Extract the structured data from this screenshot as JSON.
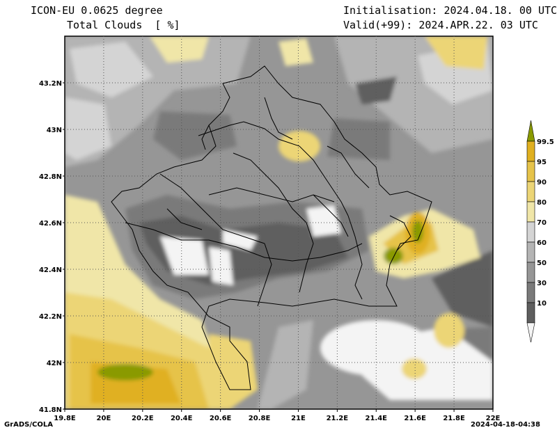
{
  "header": {
    "model": "ICON-EU 0.0625 degree",
    "field": "Total Clouds  [ %]",
    "init": "Initialisation: 2024.04.18. 00 UTC",
    "valid": "Valid(+99): 2024.APR.22. 03 UTC"
  },
  "map": {
    "lat_labels": [
      "43.2N",
      "43N",
      "42.8N",
      "42.6N",
      "42.4N",
      "42.2N",
      "42N",
      "41.8N"
    ],
    "lat_values": [
      43.2,
      43.0,
      42.8,
      42.6,
      42.4,
      42.2,
      42.0,
      41.8
    ],
    "lon_labels": [
      "19.8E",
      "20E",
      "20.2E",
      "20.4E",
      "20.6E",
      "20.8E",
      "21E",
      "21.2E",
      "21.4E",
      "21.6E",
      "21.8E",
      "22E"
    ],
    "lon_values": [
      19.8,
      20.0,
      20.2,
      20.4,
      20.6,
      20.8,
      21.0,
      21.2,
      21.4,
      21.6,
      21.8,
      22.0
    ],
    "lon_range": [
      19.8,
      22.0
    ],
    "lat_range": [
      41.8,
      43.4
    ],
    "grid": true
  },
  "colorbar": {
    "labels": [
      "99.5",
      "95",
      "90",
      "80",
      "70",
      "60",
      "50",
      "30",
      "10"
    ],
    "colors": [
      "#8a9a00",
      "#e0b020",
      "#e6c34a",
      "#ecd576",
      "#f0e6a8",
      "#d4d4d4",
      "#b4b4b4",
      "#969696",
      "#7a7a7a",
      "#5e5e5e",
      "#f4f4f4"
    ]
  },
  "footer": {
    "left": "GrADS/COLA",
    "right": "2024-04-18-04:38"
  }
}
